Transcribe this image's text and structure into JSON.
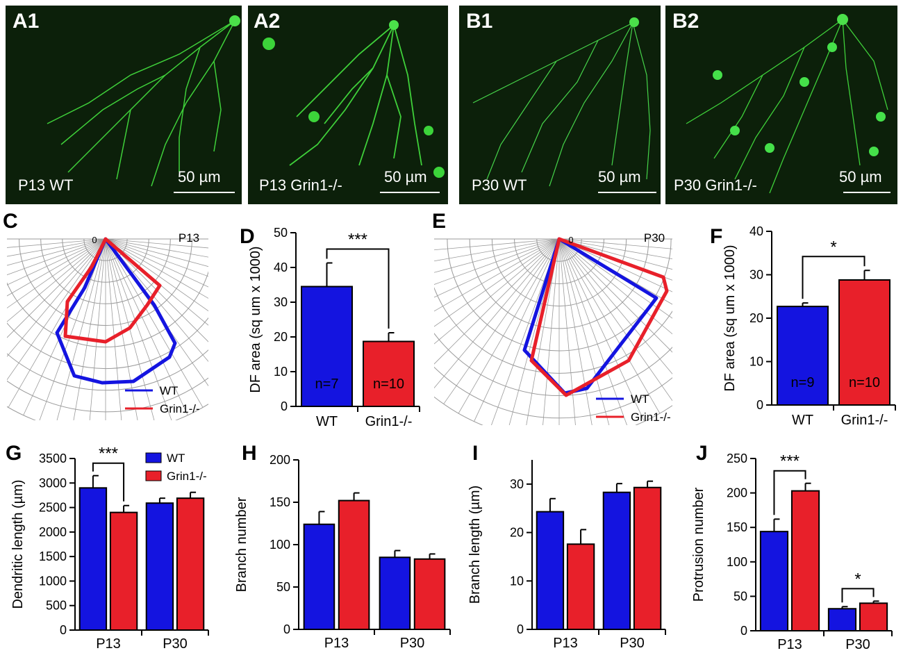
{
  "panels": {
    "a1": {
      "label": "A1",
      "condition": "P13 WT",
      "scale": "50 µm"
    },
    "a2": {
      "label": "A2",
      "condition": "P13 Grin1-/-",
      "scale": "50 µm"
    },
    "b1": {
      "label": "B1",
      "condition": "P30 WT",
      "scale": "50 µm"
    },
    "b2": {
      "label": "B2",
      "condition": "P30 Grin1-/-",
      "scale": "50 µm"
    }
  },
  "colors": {
    "wt": "#1414e0",
    "ko": "#e8202a",
    "grid": "#9a9a9a"
  },
  "legend": {
    "wt": "WT",
    "ko": "Grin1-/-"
  },
  "polar": {
    "c": {
      "label": "C",
      "age": "P13",
      "origin": "0"
    },
    "e": {
      "label": "E",
      "age": "P30",
      "origin": "0"
    }
  },
  "chart_data": [
    {
      "id": "D",
      "type": "bar",
      "ylabel": "DF area (sq um x 1000)",
      "categories": [
        "WT",
        "Grin1-/-"
      ],
      "values": [
        34.5,
        18.7
      ],
      "errors": [
        6.8,
        2.5
      ],
      "n_labels": [
        "n=7",
        "n=10"
      ],
      "ylim": [
        0,
        50
      ],
      "yticks": [
        "0",
        "10",
        "20",
        "30",
        "40",
        "50"
      ],
      "significance": "***"
    },
    {
      "id": "F",
      "type": "bar",
      "ylabel": "DF area (sq um x 1000)",
      "categories": [
        "WT",
        "Grin1-/-"
      ],
      "values": [
        22.7,
        28.8
      ],
      "errors": [
        0.8,
        2.2
      ],
      "n_labels": [
        "n=9",
        "n=10"
      ],
      "ylim": [
        0,
        40
      ],
      "yticks": [
        "0",
        "10",
        "20",
        "30",
        "40"
      ],
      "significance": "*"
    },
    {
      "id": "G",
      "type": "bar",
      "ylabel": "Dendritic length (µm)",
      "categories": [
        "P13",
        "P30"
      ],
      "series": [
        {
          "name": "WT",
          "values": [
            2900,
            2590
          ],
          "errors": [
            250,
            100
          ]
        },
        {
          "name": "Grin1-/-",
          "values": [
            2400,
            2690
          ],
          "errors": [
            140,
            120
          ]
        }
      ],
      "ylim": [
        0,
        3500
      ],
      "yticks": [
        "0",
        "500",
        "1000",
        "1500",
        "2000",
        "2500",
        "3000",
        "3500"
      ],
      "significance": [
        "***",
        ""
      ]
    },
    {
      "id": "H",
      "type": "bar",
      "ylabel": "Branch number",
      "categories": [
        "P13",
        "P30"
      ],
      "series": [
        {
          "name": "WT",
          "values": [
            124,
            85
          ],
          "errors": [
            15,
            8
          ]
        },
        {
          "name": "Grin1-/-",
          "values": [
            152,
            83
          ],
          "errors": [
            9,
            6
          ]
        }
      ],
      "ylim": [
        0,
        200
      ],
      "yticks": [
        "0",
        "50",
        "100",
        "150",
        "200"
      ],
      "significance": [
        "",
        ""
      ]
    },
    {
      "id": "I",
      "type": "bar",
      "ylabel": "Branch length (µm)",
      "categories": [
        "P13",
        "P30"
      ],
      "series": [
        {
          "name": "WT",
          "values": [
            24.3,
            28.3
          ],
          "errors": [
            2.7,
            1.8
          ]
        },
        {
          "name": "Grin1-/-",
          "values": [
            17.6,
            29.3
          ],
          "errors": [
            3.0,
            1.3
          ]
        }
      ],
      "ylim": [
        0,
        35
      ],
      "yticks": [
        "0",
        "10",
        "20",
        "30"
      ],
      "significance": [
        "",
        ""
      ]
    },
    {
      "id": "J",
      "type": "bar",
      "ylabel": "Protrusion number",
      "categories": [
        "P13",
        "P30"
      ],
      "series": [
        {
          "name": "WT",
          "values": [
            144,
            32
          ],
          "errors": [
            18,
            3
          ]
        },
        {
          "name": "Grin1-/-",
          "values": [
            203,
            40
          ],
          "errors": [
            11,
            3
          ]
        }
      ],
      "ylim": [
        0,
        250
      ],
      "yticks": [
        "0",
        "50",
        "100",
        "150",
        "200",
        "250"
      ],
      "significance": [
        "***",
        "*"
      ]
    }
  ]
}
